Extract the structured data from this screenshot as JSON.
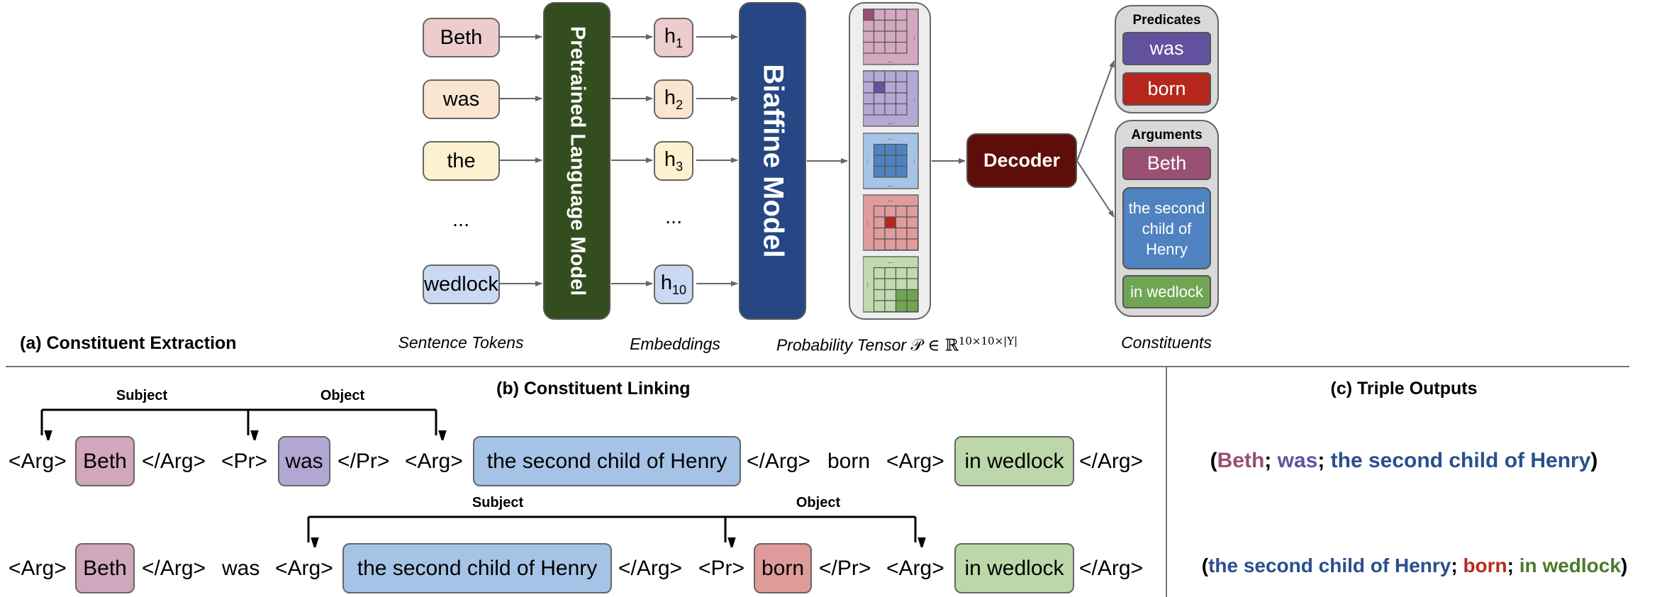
{
  "extraction": {
    "section_label": "(a) Constituent Extraction",
    "tokens": [
      {
        "text": "Beth",
        "color": "#eccccc"
      },
      {
        "text": "was",
        "color": "#fae5d0"
      },
      {
        "text": "the",
        "color": "#fdf2cf"
      },
      {
        "text": "wedlock",
        "color": "#c9d9f3"
      }
    ],
    "ellipsis": "...",
    "plm_label": "Pretrained Language Model",
    "plm_color": "#334d1f",
    "embeddings": [
      {
        "base": "h",
        "sub": "1",
        "color": "#eccccc"
      },
      {
        "base": "h",
        "sub": "2",
        "color": "#fae5d0"
      },
      {
        "base": "h",
        "sub": "3",
        "color": "#fdf2cf"
      },
      {
        "base": "h",
        "sub": "10",
        "color": "#c9d9f3"
      }
    ],
    "biaffine_label": "Biaffine Model",
    "biaffine_color": "#264784",
    "decoder_label": "Decoder",
    "decoder_color": "#5e0e08",
    "captions": {
      "tokens": "Sentence Tokens",
      "embeddings": "Embeddings",
      "tensor": "Probability Tensor",
      "tensor_math": "𝒫 ∈ ℝ",
      "tensor_sup": "10×10×|Y|",
      "constituents": "Constituents"
    },
    "predicates": {
      "title": "Predicates",
      "items": [
        {
          "text": "was",
          "color": "#6252a0"
        },
        {
          "text": "born",
          "color": "#b5271d"
        }
      ]
    },
    "arguments": {
      "title": "Arguments",
      "items": [
        {
          "text": "Beth",
          "color": "#9a5073"
        },
        {
          "text": "the second child of Henry",
          "color": "#4f82c0"
        },
        {
          "text": "in wedlock",
          "color": "#6fa553"
        }
      ]
    }
  },
  "linking": {
    "section_label": "(b) Constituent Linking",
    "row1": {
      "subject_label": "Subject",
      "object_label": "Object",
      "words": [
        "<Arg>",
        "Beth",
        "</Arg>",
        "<Pr>",
        "was",
        "</Pr>",
        "<Arg>",
        "the second child of Henry",
        "</Arg>",
        "born",
        "<Arg>",
        "in wedlock",
        "</Arg>"
      ]
    },
    "row2": {
      "subject_label": "Subject",
      "object_label": "Object",
      "words": [
        "<Arg>",
        "Beth",
        "</Arg>",
        "was",
        "<Arg>",
        "the second child of Henry",
        "</Arg>",
        "<Pr>",
        "born",
        "</Pr>",
        "<Arg>",
        "in wedlock",
        "</Arg>"
      ]
    },
    "highlight_colors": {
      "beth": "#d0a7bc",
      "was": "#b2a7d3",
      "henry": "#a5c3e6",
      "born": "#df9a9a",
      "wedlock": "#bcd7a9"
    }
  },
  "triples": {
    "section_label": "(c) Triple Outputs",
    "items": [
      {
        "open": "(",
        "subject": "Beth",
        "sep1": "; ",
        "predicate": "was",
        "sep2": "; ",
        "object": "the second child of Henry",
        "close": ")",
        "colors": {
          "subject": "#9c4d72",
          "predicate": "#6252a0",
          "object": "#2a4f8e"
        }
      },
      {
        "open": "(",
        "subject": "the second child of Henry",
        "sep1": "; ",
        "predicate": "born",
        "sep2": "; ",
        "object": "in wedlock",
        "close": ")",
        "colors": {
          "subject": "#2a4f8e",
          "predicate": "#b72a1f",
          "object": "#4a7a2a"
        }
      }
    ]
  }
}
